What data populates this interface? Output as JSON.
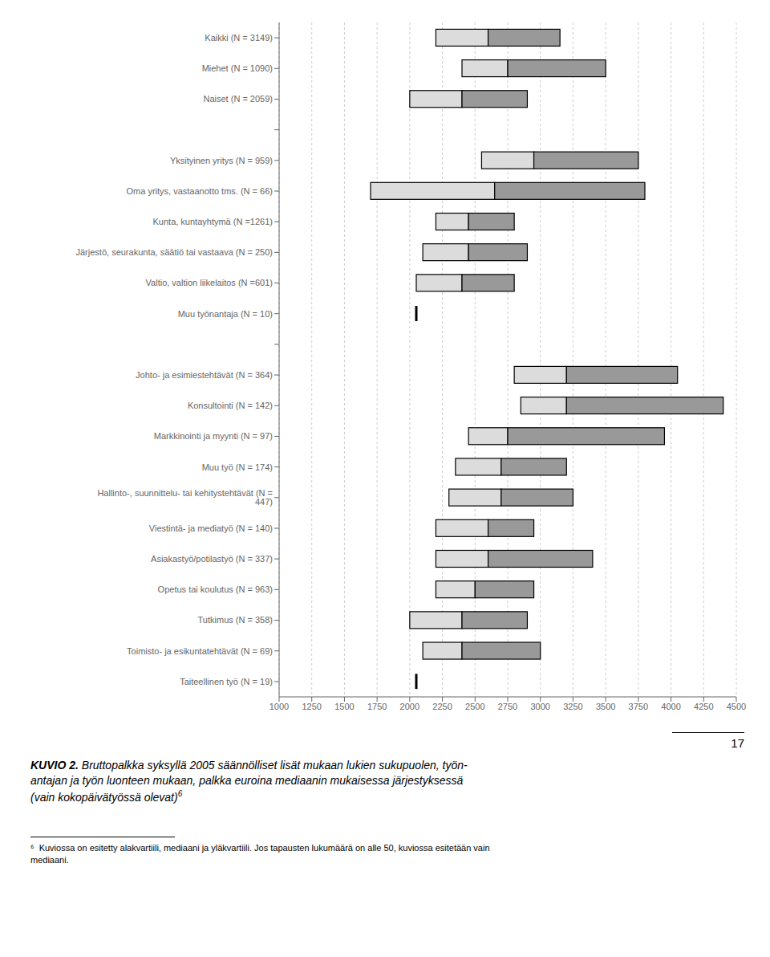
{
  "chart_data": {
    "type": "box",
    "orientation": "horizontal",
    "title": "KUVIO 2.",
    "subtitle": " Bruttopalkka syksyllä 2005 säännölliset lisät mukaan lukien sukupuolen, työn-\nantajan ja työn luonteen mukaan, palkka euroina mediaanin mukaisessa järjestyksessä\n(vain kokopäivätyössä olevat)",
    "annotations": [
      "6",
      "⁶",
      "  Kuviossa on esitetty alakvartiili, mediaani ja yläkvartiili. Jos tapausten lukumäärä on alle 50, kuviossa esitetään vain\nmediaani.",
      "17"
    ],
    "categories": [
      "Kaikki (N = 3149)",
      "Miehet (N = 1090)",
      "Naiset (N = 2059)",
      null,
      "Yksityinen yritys (N = 959)",
      "Oma yritys, vastaanotto tms. (N = 66)",
      "Kunta, kuntayhtymä (N =1261)",
      "Järjestö, seurakunta, säätiö tai vastaava (N = 250)",
      "Valtio, valtion liikelaitos (N =601)",
      "Muu työnantaja (N = 10)",
      null,
      "Johto- ja esimiestehtävät (N = 364)",
      "Konsultointi (N = 142)",
      "Markkinointi ja myynti (N = 97)",
      "Muu työ (N = 174)",
      "Hallinto-, suunnittelu-  tai kehitystehtävät (N = 447)",
      "Viestintä- ja mediatyö (N = 140)",
      "Asiakastyö/potilastyö (N = 337)",
      "Opetus tai koulutus (N = 963)",
      "Tutkimus (N = 358)",
      "Toimisto- ja esikuntatehtävät (N = 69)",
      "Taiteellinen työ (N = 19)"
    ],
    "q1": [
      2200,
      2400,
      2000,
      null,
      2550,
      1700,
      2200,
      2100,
      2050,
      2050,
      null,
      2800,
      2850,
      2450,
      2350,
      2300,
      2200,
      2200,
      2200,
      2000,
      2100,
      2050
    ],
    "median": [
      2600,
      2750,
      2400,
      null,
      2950,
      2650,
      2450,
      2450,
      2400,
      2050,
      null,
      3200,
      3200,
      2750,
      2700,
      2700,
      2600,
      2600,
      2500,
      2400,
      2400,
      2050
    ],
    "q3": [
      3150,
      3500,
      2900,
      null,
      3750,
      3800,
      2800,
      2900,
      2800,
      2050,
      null,
      4050,
      4400,
      3950,
      3200,
      3250,
      2950,
      3400,
      2950,
      2900,
      3000,
      2050
    ],
    "colors": [
      "#dcdcdc",
      "#999999"
    ],
    "xlim": [
      1000,
      4500
    ],
    "xticks": [
      1000,
      1250,
      1500,
      1750,
      2000,
      2250,
      2500,
      2750,
      3000,
      3250,
      3500,
      3750,
      4000,
      4250,
      4500
    ],
    "grid": true
  }
}
